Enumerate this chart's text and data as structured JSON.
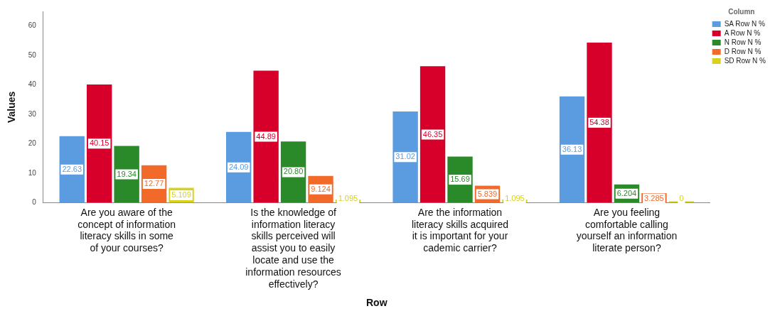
{
  "chart_data": {
    "type": "bar",
    "xlabel": "Row",
    "ylabel": "Values",
    "legend_title": "Column",
    "categories": [
      "Are you aware of the concept of information literacy skills in some of your courses?",
      "Is the knowledge of information literacy skills perceived will assist you to easily locate and use the information resources effectively?",
      "Are the information literacy skills acquired it is important for your cademic carrier?",
      "Are you feeling comfortable calling yourself an information literate person?"
    ],
    "series": [
      {
        "name": "SA Row N %",
        "color": "#5b9be0",
        "values": [
          22.63,
          24.09,
          31.02,
          36.13
        ],
        "value_labels": [
          "22.63",
          "24.09",
          "31.02",
          "36.13"
        ]
      },
      {
        "name": "A Row N %",
        "color": "#d6002a",
        "values": [
          40.15,
          44.89,
          46.35,
          54.38
        ],
        "value_labels": [
          "40.15",
          "44.89",
          "46.35",
          "54.38"
        ]
      },
      {
        "name": "N Row N %",
        "color": "#2a8a2a",
        "values": [
          19.34,
          20.8,
          15.69,
          6.204
        ],
        "value_labels": [
          "19.34",
          "20.80",
          "15.69",
          "6.204"
        ]
      },
      {
        "name": "D Row N %",
        "color": "#f26a2a",
        "values": [
          12.77,
          9.124,
          5.839,
          3.285
        ],
        "value_labels": [
          "12.77",
          "9.124",
          "5.839",
          "3.285"
        ]
      },
      {
        "name": "SD Row N %",
        "color": "#d8d21e",
        "values": [
          5.109,
          1.095,
          1.095,
          0
        ],
        "value_labels": [
          "5.109",
          "1.095",
          "1.095",
          "0"
        ]
      }
    ],
    "ylim": [
      0,
      65
    ],
    "yticks": [
      0,
      10,
      20,
      30,
      40,
      50,
      60
    ],
    "grid": false,
    "legend": "top right"
  }
}
